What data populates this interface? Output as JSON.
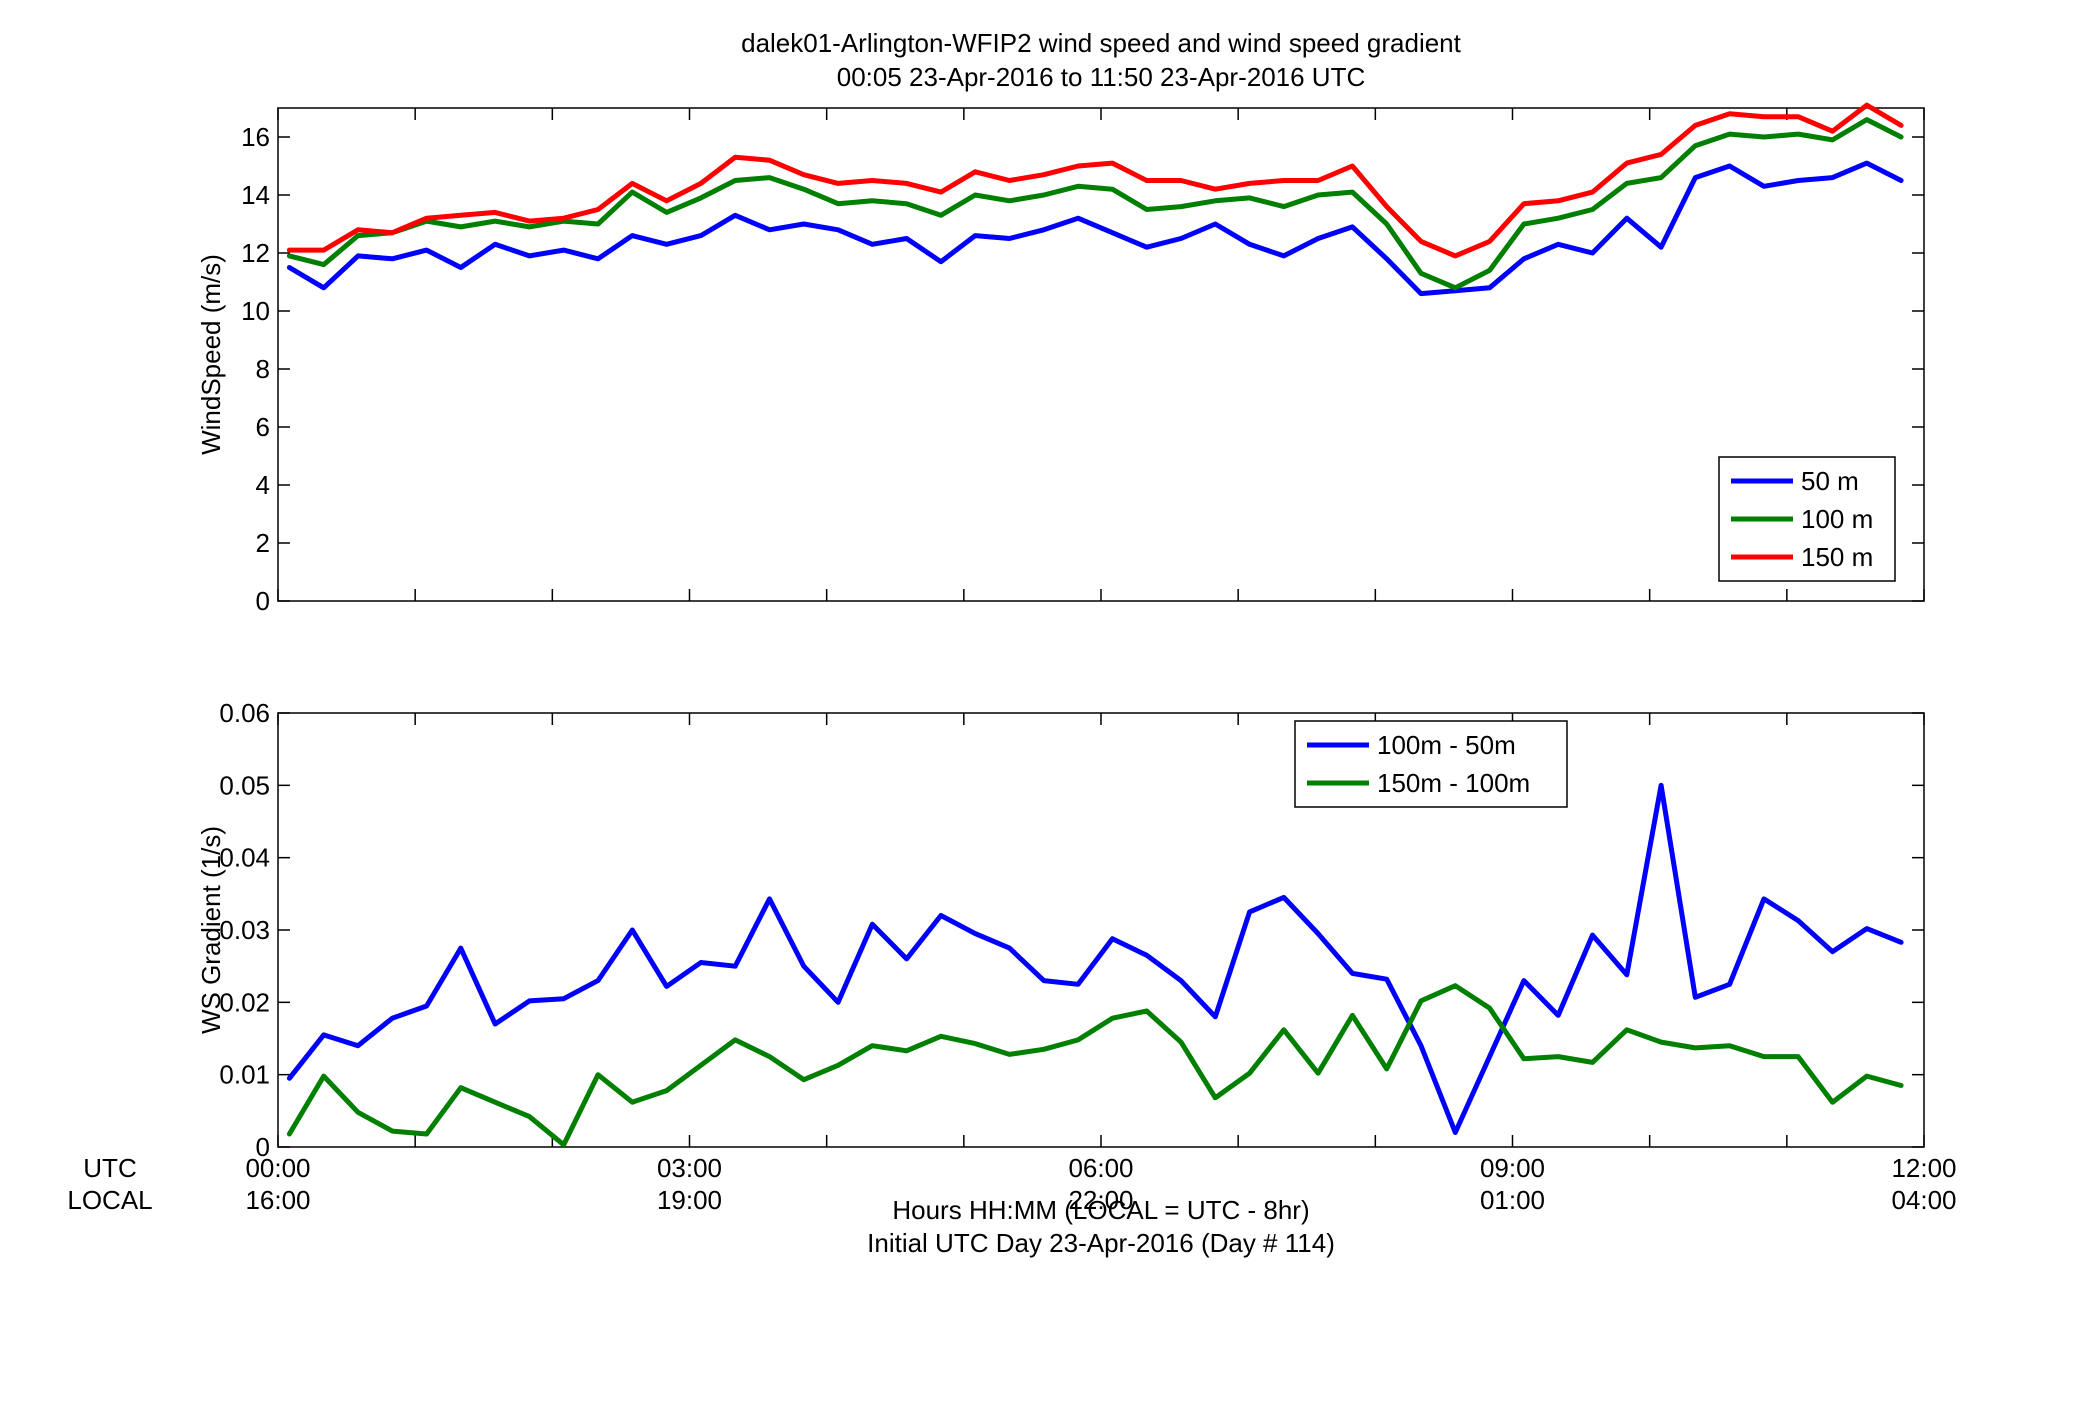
{
  "figure": {
    "title_line1": "dalek01-Arlington-WFIP2  wind speed and wind speed gradient",
    "title_line2": "00:05 23-Apr-2016 to 11:50 23-Apr-2016  UTC",
    "utc_row_label": "UTC",
    "local_row_label": "LOCAL",
    "xlabel_line1": "Hours HH:MM  (LOCAL = UTC - 8hr)",
    "xlabel_line2": "Initial UTC Day 23-Apr-2016 (Day # 114)",
    "utc_tick_labels": [
      "00:00",
      "03:00",
      "06:00",
      "09:00",
      "12:00"
    ],
    "local_tick_labels": [
      "16:00",
      "19:00",
      "22:00",
      "01:00",
      "04:00"
    ]
  },
  "chart_data": [
    {
      "type": "line",
      "ylabel": "WindSpeed (m/s)",
      "xlim": [
        0,
        12
      ],
      "ylim": [
        0,
        17
      ],
      "yticks": [
        0,
        2,
        4,
        6,
        8,
        10,
        12,
        14,
        16
      ],
      "grid": false,
      "legend_position": "bottom-right",
      "x": [
        0.083,
        0.333,
        0.583,
        0.833,
        1.083,
        1.333,
        1.583,
        1.833,
        2.083,
        2.333,
        2.583,
        2.833,
        3.083,
        3.333,
        3.583,
        3.833,
        4.083,
        4.333,
        4.583,
        4.833,
        5.083,
        5.333,
        5.583,
        5.833,
        6.083,
        6.333,
        6.583,
        6.833,
        7.083,
        7.333,
        7.583,
        7.833,
        8.083,
        8.333,
        8.583,
        8.833,
        9.083,
        9.333,
        9.583,
        9.833,
        10.083,
        10.333,
        10.583,
        10.833,
        11.083,
        11.333,
        11.583,
        11.833
      ],
      "series": [
        {
          "name": "50 m",
          "color": "#0000ff",
          "values": [
            11.5,
            10.8,
            11.9,
            11.8,
            12.1,
            11.5,
            12.3,
            11.9,
            12.1,
            11.8,
            12.6,
            12.3,
            12.6,
            13.3,
            12.8,
            13.0,
            12.8,
            12.3,
            12.5,
            11.7,
            12.6,
            12.5,
            12.8,
            13.2,
            12.7,
            12.2,
            12.5,
            13.0,
            12.3,
            11.9,
            12.5,
            12.9,
            11.8,
            10.6,
            10.7,
            10.8,
            11.8,
            12.3,
            12.0,
            13.2,
            12.2,
            14.6,
            15.0,
            14.3,
            14.5,
            14.6,
            15.1,
            14.5
          ]
        },
        {
          "name": "100 m",
          "color": "#007f00",
          "values": [
            11.9,
            11.6,
            12.6,
            12.7,
            13.1,
            12.9,
            13.1,
            12.9,
            13.1,
            13.0,
            14.1,
            13.4,
            13.9,
            14.5,
            14.6,
            14.2,
            13.7,
            13.8,
            13.7,
            13.3,
            14.0,
            13.8,
            14.0,
            14.3,
            14.2,
            13.5,
            13.6,
            13.8,
            13.9,
            13.6,
            14.0,
            14.1,
            13.0,
            11.3,
            10.8,
            11.4,
            13.0,
            13.2,
            13.5,
            14.4,
            14.6,
            15.7,
            16.1,
            16.0,
            16.1,
            15.9,
            16.6,
            16.0
          ]
        },
        {
          "name": "150 m",
          "color": "#ff0000",
          "values": [
            12.1,
            12.1,
            12.8,
            12.7,
            13.2,
            13.3,
            13.4,
            13.1,
            13.2,
            13.5,
            14.4,
            13.8,
            14.4,
            15.3,
            15.2,
            14.7,
            14.4,
            14.5,
            14.4,
            14.1,
            14.8,
            14.5,
            14.7,
            15.0,
            15.1,
            14.5,
            14.5,
            14.2,
            14.4,
            14.5,
            14.5,
            15.0,
            13.6,
            12.4,
            11.9,
            12.4,
            13.7,
            13.8,
            14.1,
            15.1,
            15.4,
            16.4,
            16.8,
            16.7,
            16.7,
            16.2,
            17.1,
            16.4
          ]
        }
      ]
    },
    {
      "type": "line",
      "ylabel": "WS Gradient (1/s)",
      "xlim": [
        0,
        12
      ],
      "ylim": [
        0,
        0.06
      ],
      "yticks": [
        "0",
        "0.01",
        "0.02",
        "0.03",
        "0.04",
        "0.05",
        "0.06"
      ],
      "grid": false,
      "legend_position": "top-right",
      "x": [
        0.083,
        0.333,
        0.583,
        0.833,
        1.083,
        1.333,
        1.583,
        1.833,
        2.083,
        2.333,
        2.583,
        2.833,
        3.083,
        3.333,
        3.583,
        3.833,
        4.083,
        4.333,
        4.583,
        4.833,
        5.083,
        5.333,
        5.583,
        5.833,
        6.083,
        6.333,
        6.583,
        6.833,
        7.083,
        7.333,
        7.583,
        7.833,
        8.083,
        8.333,
        8.583,
        8.833,
        9.083,
        9.333,
        9.583,
        9.833,
        10.083,
        10.333,
        10.583,
        10.833,
        11.083,
        11.333,
        11.583,
        11.833
      ],
      "series": [
        {
          "name": "100m - 50m",
          "color": "#0000ff",
          "values": [
            0.0095,
            0.0155,
            0.014,
            0.0178,
            0.0195,
            0.0275,
            0.017,
            0.0202,
            0.0205,
            0.023,
            0.03,
            0.0222,
            0.0255,
            0.025,
            0.0343,
            0.025,
            0.02,
            0.0308,
            0.026,
            0.032,
            0.0295,
            0.0275,
            0.023,
            0.0225,
            0.0288,
            0.0265,
            0.023,
            0.018,
            0.0325,
            0.0345,
            0.0295,
            0.024,
            0.0232,
            0.014,
            0.002,
            0.0125,
            0.023,
            0.0182,
            0.0293,
            0.0238,
            0.05,
            0.0207,
            0.0225,
            0.0343,
            0.0313,
            0.027,
            0.0302,
            0.0283
          ]
        },
        {
          "name": "150m - 100m",
          "color": "#007f00",
          "values": [
            0.0018,
            0.0098,
            0.0048,
            0.0022,
            0.0018,
            0.0082,
            0.0062,
            0.0042,
            0.0003,
            0.01,
            0.0062,
            0.0078,
            0.0113,
            0.0148,
            0.0125,
            0.0093,
            0.0113,
            0.014,
            0.0133,
            0.0153,
            0.0143,
            0.0128,
            0.0135,
            0.0148,
            0.0178,
            0.0188,
            0.0145,
            0.0068,
            0.0102,
            0.0162,
            0.0102,
            0.0182,
            0.0108,
            0.0202,
            0.0223,
            0.0192,
            0.0122,
            0.0125,
            0.0117,
            0.0162,
            0.0145,
            0.0137,
            0.014,
            0.0125,
            0.0125,
            0.0062,
            0.0098,
            0.0085
          ]
        }
      ]
    }
  ]
}
